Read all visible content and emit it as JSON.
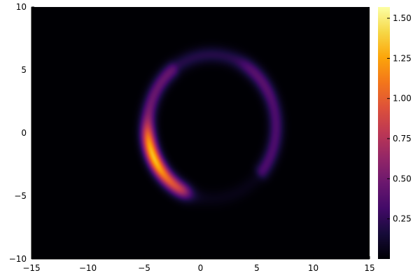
{
  "chart_data": {
    "type": "heatmap",
    "title": "",
    "xlabel": "",
    "ylabel": "",
    "xlim": [
      -15,
      15
    ],
    "ylim": [
      -10,
      10
    ],
    "x_ticks": [
      -15,
      -10,
      -5,
      0,
      5,
      10,
      15
    ],
    "y_ticks": [
      -10,
      -5,
      0,
      5,
      10
    ],
    "colorbar": {
      "colormap": "inferno",
      "range": [
        0,
        1.57
      ],
      "ticks": [
        0.25,
        0.5,
        0.75,
        1.0,
        1.25,
        1.5
      ],
      "tick_labels": [
        "0.25",
        "0.50",
        "0.75",
        "1.00",
        "1.25",
        "1.50"
      ]
    },
    "grid": false,
    "feature": {
      "shape": "ring",
      "center": [
        1.0,
        0.5
      ],
      "radius": 5.7,
      "ring_width": 0.45,
      "peak_value": 1.55,
      "peak_location": [
        -4.5,
        -2.5
      ],
      "description_values": [
        {
          "x": -4.5,
          "y": -2.5,
          "value": 1.55
        },
        {
          "x": -4.8,
          "y": -1.0,
          "value": 1.2
        },
        {
          "x": -3.5,
          "y": -4.3,
          "value": 0.85
        },
        {
          "x": -4.3,
          "y": 1.5,
          "value": 0.45
        },
        {
          "x": 4.5,
          "y": 3.8,
          "value": 0.4
        },
        {
          "x": 6.3,
          "y": 1.0,
          "value": 0.35
        },
        {
          "x": 2.0,
          "y": 6.0,
          "value": 0.2
        },
        {
          "x": 1.0,
          "y": -5.2,
          "value": 0.05
        }
      ]
    },
    "background_value": 0.0
  }
}
